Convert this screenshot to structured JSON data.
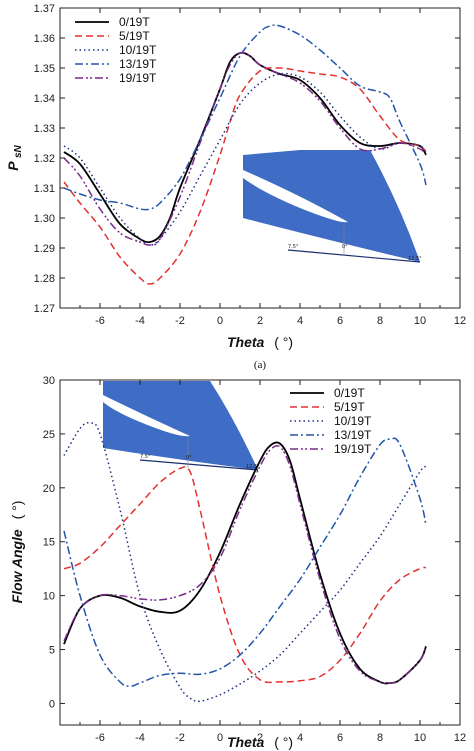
{
  "figure": {
    "caption": "(a)"
  },
  "chart_data": [
    {
      "type": "line",
      "title": "",
      "xlabel": "Theta",
      "xlabel_unit": "( °)",
      "ylabel": "P",
      "ylabel_sub": "sN",
      "xlim": [
        -8,
        12
      ],
      "ylim": [
        1.27,
        1.37
      ],
      "xticks": [
        -6,
        -4,
        -2,
        0,
        2,
        4,
        6,
        8,
        10,
        12
      ],
      "yticks": [
        1.27,
        1.28,
        1.29,
        1.3,
        1.31,
        1.32,
        1.33,
        1.34,
        1.35,
        1.36,
        1.37
      ],
      "ytick_labels": [
        "1.27",
        "1.28",
        "1.29",
        "1.30",
        "1.31",
        "1.32",
        "1.33",
        "1.34",
        "1.35",
        "1.36",
        "1.37"
      ],
      "grid": false,
      "legend_position": "top-left",
      "inset": {
        "position": "bottom-right",
        "labels": [
          "7.5°",
          "0°",
          "12.5°"
        ]
      },
      "series": [
        {
          "name": "0/19T",
          "color": "#000000",
          "dash": "solid",
          "x": [
            -7.8,
            -7,
            -6,
            -5,
            -4,
            -3.5,
            -3,
            -2.5,
            -2,
            -1,
            0,
            0.5,
            1,
            1.5,
            2,
            3,
            4,
            5,
            6,
            7,
            8,
            9,
            10,
            10.3
          ],
          "y": [
            1.322,
            1.318,
            1.308,
            1.298,
            1.293,
            1.292,
            1.294,
            1.3,
            1.31,
            1.326,
            1.343,
            1.352,
            1.355,
            1.354,
            1.351,
            1.348,
            1.346,
            1.34,
            1.331,
            1.325,
            1.324,
            1.325,
            1.324,
            1.321
          ]
        },
        {
          "name": "5/19T",
          "color": "#e53030",
          "dash": "dash",
          "x": [
            -7.8,
            -7,
            -6,
            -5,
            -4,
            -3.5,
            -3,
            -2,
            -1,
            0,
            0.5,
            1,
            2,
            3,
            4,
            5,
            6,
            7,
            8,
            9,
            10,
            10.3
          ],
          "y": [
            1.312,
            1.305,
            1.297,
            1.287,
            1.28,
            1.278,
            1.28,
            1.288,
            1.302,
            1.321,
            1.332,
            1.341,
            1.349,
            1.35,
            1.349,
            1.348,
            1.347,
            1.343,
            1.334,
            1.326,
            1.324,
            1.322
          ]
        },
        {
          "name": "10/19T",
          "color": "#1a2f80",
          "dash": "dot",
          "x": [
            -7.8,
            -7,
            -6,
            -5,
            -4,
            -3.5,
            -3,
            -2,
            -1,
            0,
            1,
            2,
            3,
            4,
            5,
            6,
            7,
            8,
            9,
            10,
            10.3
          ],
          "y": [
            1.324,
            1.32,
            1.31,
            1.3,
            1.293,
            1.291,
            1.293,
            1.302,
            1.314,
            1.326,
            1.338,
            1.345,
            1.348,
            1.347,
            1.342,
            1.334,
            1.327,
            1.323,
            1.325,
            1.324,
            1.322
          ]
        },
        {
          "name": "13/19T",
          "color": "#2255aa",
          "dash": "dashdot",
          "x": [
            -7.8,
            -7,
            -6,
            -5,
            -4,
            -3.5,
            -3,
            -2,
            -1,
            0,
            1,
            2,
            2.5,
            3,
            4,
            5,
            6,
            7,
            8,
            8.5,
            9,
            10,
            10.3
          ],
          "y": [
            1.31,
            1.308,
            1.306,
            1.305,
            1.303,
            1.303,
            1.305,
            1.313,
            1.326,
            1.34,
            1.354,
            1.362,
            1.364,
            1.364,
            1.361,
            1.356,
            1.35,
            1.344,
            1.342,
            1.34,
            1.332,
            1.318,
            1.311
          ]
        },
        {
          "name": "19/19T",
          "color": "#7a2c8a",
          "dash": "dashdotdot",
          "x": [
            -7.8,
            -7,
            -6,
            -5,
            -4,
            -3.5,
            -3,
            -2,
            -1,
            0,
            0.5,
            1,
            1.5,
            2,
            3,
            4,
            5,
            6,
            7,
            8,
            9,
            10,
            10.3
          ],
          "y": [
            1.32,
            1.314,
            1.303,
            1.295,
            1.292,
            1.291,
            1.293,
            1.307,
            1.325,
            1.343,
            1.351,
            1.355,
            1.354,
            1.351,
            1.348,
            1.345,
            1.339,
            1.33,
            1.323,
            1.323,
            1.325,
            1.323,
            1.321
          ]
        }
      ]
    },
    {
      "type": "line",
      "title": "",
      "xlabel": "Theta",
      "xlabel_unit": "( °)",
      "ylabel": "Flow Angle",
      "ylabel_unit": "( °)",
      "xlim": [
        -8,
        12
      ],
      "ylim": [
        -2,
        30
      ],
      "xticks": [
        -6,
        -4,
        -2,
        0,
        2,
        4,
        6,
        8,
        10,
        12
      ],
      "yticks": [
        0,
        5,
        10,
        15,
        20,
        25,
        30
      ],
      "ytick_labels": [
        "0",
        "5",
        "10",
        "15",
        "20",
        "25",
        "30"
      ],
      "grid": false,
      "legend_position": "top-right",
      "inset": {
        "position": "top-left",
        "labels": [
          "7.5°",
          "0°",
          "12.5°"
        ]
      },
      "series": [
        {
          "name": "0/19T",
          "color": "#000000",
          "dash": "solid",
          "x": [
            -7.8,
            -7,
            -6,
            -5,
            -4,
            -3,
            -2,
            -1,
            0,
            1,
            2,
            2.5,
            3,
            3.5,
            4,
            5,
            6,
            7,
            8,
            8.5,
            9,
            10,
            10.3
          ],
          "y": [
            5.5,
            8.8,
            10.0,
            9.8,
            9.0,
            8.5,
            8.6,
            10.5,
            14.0,
            18.5,
            22.5,
            23.9,
            24.1,
            22.5,
            19.0,
            12.0,
            6.5,
            3.2,
            2.0,
            1.9,
            2.2,
            4.0,
            5.3
          ]
        },
        {
          "name": "5/19T",
          "color": "#e53030",
          "dash": "dash",
          "x": [
            -7.8,
            -7,
            -6,
            -5,
            -4,
            -3,
            -2,
            -1.5,
            -1,
            0,
            1,
            2,
            3,
            4,
            5,
            6,
            7,
            8,
            9,
            10,
            10.3
          ],
          "y": [
            12.5,
            13.0,
            14.5,
            16.5,
            18.5,
            20.5,
            21.8,
            21.5,
            18.0,
            10.0,
            4.5,
            2.2,
            2.0,
            2.1,
            2.5,
            4.0,
            6.5,
            9.5,
            11.5,
            12.5,
            12.6
          ]
        },
        {
          "name": "10/19T",
          "color": "#1a2f80",
          "dash": "dot",
          "x": [
            -7.8,
            -7,
            -6.5,
            -6,
            -5,
            -4,
            -3,
            -2,
            -1.5,
            -1,
            0,
            1,
            2,
            3,
            4,
            5,
            6,
            7,
            8,
            9,
            10,
            10.3
          ],
          "y": [
            23.0,
            25.5,
            26.0,
            25.0,
            18.0,
            10.0,
            5.0,
            1.5,
            0.5,
            0.2,
            0.8,
            1.8,
            3.0,
            4.5,
            6.5,
            8.5,
            10.5,
            13.0,
            15.5,
            18.5,
            21.5,
            22.0
          ]
        },
        {
          "name": "13/19T",
          "color": "#2255aa",
          "dash": "dashdot",
          "x": [
            -7.8,
            -7,
            -6,
            -5,
            -4.5,
            -4,
            -3,
            -2,
            -1,
            0,
            1,
            2,
            3,
            4,
            5,
            6,
            7,
            8,
            8.5,
            9,
            10,
            10.3
          ],
          "y": [
            16.0,
            10.0,
            4.5,
            2.0,
            1.6,
            1.9,
            2.6,
            2.8,
            2.7,
            3.2,
            4.5,
            6.5,
            9.0,
            11.5,
            14.5,
            17.5,
            21.0,
            24.0,
            24.5,
            24.0,
            19.0,
            16.5
          ]
        },
        {
          "name": "19/19T",
          "color": "#7a2c8a",
          "dash": "dashdotdot",
          "x": [
            -7.8,
            -7,
            -6,
            -5,
            -4,
            -3,
            -2,
            -1,
            0,
            1,
            2,
            2.5,
            3,
            3.5,
            4,
            5,
            6,
            7,
            8,
            8.5,
            9,
            10,
            10.3
          ],
          "y": [
            5.8,
            8.8,
            10.0,
            10.0,
            9.7,
            9.6,
            10.0,
            11.0,
            13.5,
            18.0,
            22.0,
            23.5,
            23.8,
            22.0,
            18.5,
            11.5,
            6.0,
            3.0,
            2.0,
            1.9,
            2.2,
            4.0,
            5.2
          ]
        }
      ]
    }
  ]
}
